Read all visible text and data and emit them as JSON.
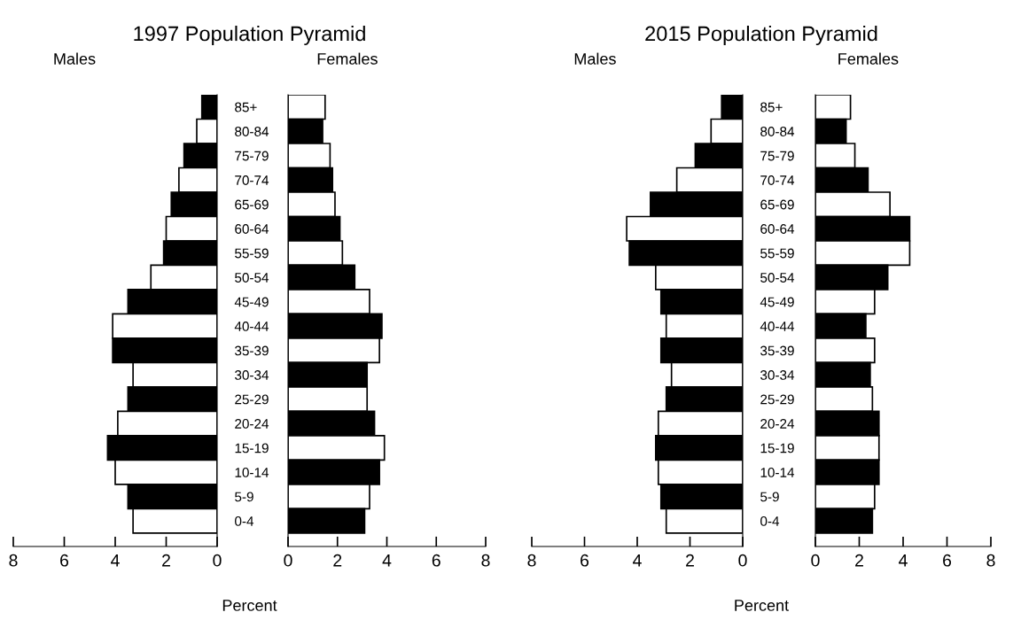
{
  "chart_data": [
    {
      "type": "bar",
      "orientation": "horizontal",
      "title": "1997 Population Pyramid",
      "subtitle": "Males",
      "xlabel": "Percent",
      "categories": [
        "85+",
        "80-84",
        "75-79",
        "70-74",
        "65-69",
        "60-64",
        "55-59",
        "50-54",
        "45-49",
        "40-44",
        "35-39",
        "30-34",
        "25-29",
        "20-24",
        "15-19",
        "10-14",
        "5-9",
        "0-4"
      ],
      "values": [
        0.6,
        0.8,
        1.3,
        1.5,
        1.8,
        2.0,
        2.1,
        2.6,
        3.5,
        4.1,
        4.1,
        3.3,
        3.5,
        3.9,
        4.3,
        4.0,
        3.5,
        3.3
      ],
      "colors": [
        "#000000",
        "#ffffff",
        "#000000",
        "#ffffff",
        "#000000",
        "#ffffff",
        "#000000",
        "#ffffff",
        "#000000",
        "#ffffff",
        "#000000",
        "#ffffff",
        "#000000",
        "#ffffff",
        "#000000",
        "#ffffff",
        "#000000",
        "#ffffff"
      ],
      "xlim": [
        8,
        0
      ],
      "xticks": [
        8,
        6,
        4,
        2,
        0
      ]
    },
    {
      "type": "bar",
      "orientation": "horizontal",
      "subtitle": "Females",
      "categories": [
        null,
        null,
        null,
        null,
        null,
        null,
        null,
        null,
        null,
        null,
        null,
        null,
        null,
        null,
        null,
        null,
        null,
        null
      ],
      "values": [
        1.5,
        1.4,
        1.7,
        1.8,
        1.9,
        2.1,
        2.2,
        2.7,
        3.3,
        3.8,
        3.7,
        3.2,
        3.2,
        3.5,
        3.9,
        3.7,
        3.3,
        3.1
      ],
      "colors": [
        "#ffffff",
        "#000000",
        "#ffffff",
        "#000000",
        "#ffffff",
        "#000000",
        "#ffffff",
        "#000000",
        "#ffffff",
        "#000000",
        "#ffffff",
        "#000000",
        "#ffffff",
        "#000000",
        "#ffffff",
        "#000000",
        "#ffffff",
        "#000000"
      ],
      "xlim": [
        0,
        8
      ],
      "xticks": [
        0,
        2,
        4,
        6,
        8
      ]
    },
    {
      "type": "bar",
      "orientation": "horizontal",
      "title": "2015 Population Pyramid",
      "subtitle": "Males",
      "xlabel": "Percent",
      "categories": [
        "85+",
        "80-84",
        "75-79",
        "70-74",
        "65-69",
        "60-64",
        "55-59",
        "50-54",
        "45-49",
        "40-44",
        "35-39",
        "30-34",
        "25-29",
        "20-24",
        "15-19",
        "10-14",
        "5-9",
        "0-4"
      ],
      "values": [
        0.8,
        1.2,
        1.8,
        2.5,
        3.5,
        4.4,
        4.3,
        3.3,
        3.1,
        2.9,
        3.1,
        2.7,
        2.9,
        3.2,
        3.3,
        3.2,
        3.1,
        2.9
      ],
      "colors": [
        "#000000",
        "#ffffff",
        "#000000",
        "#ffffff",
        "#000000",
        "#ffffff",
        "#000000",
        "#ffffff",
        "#000000",
        "#ffffff",
        "#000000",
        "#ffffff",
        "#000000",
        "#ffffff",
        "#000000",
        "#ffffff",
        "#000000",
        "#ffffff"
      ],
      "xlim": [
        8,
        0
      ],
      "xticks": [
        8,
        6,
        4,
        2,
        0
      ]
    },
    {
      "type": "bar",
      "orientation": "horizontal",
      "subtitle": "Females",
      "categories": [
        null,
        null,
        null,
        null,
        null,
        null,
        null,
        null,
        null,
        null,
        null,
        null,
        null,
        null,
        null,
        null,
        null,
        null
      ],
      "values": [
        1.6,
        1.4,
        1.8,
        2.4,
        3.4,
        4.3,
        4.3,
        3.3,
        2.7,
        2.3,
        2.7,
        2.5,
        2.6,
        2.9,
        2.9,
        2.9,
        2.7,
        2.6
      ],
      "colors": [
        "#ffffff",
        "#000000",
        "#ffffff",
        "#000000",
        "#ffffff",
        "#000000",
        "#ffffff",
        "#000000",
        "#ffffff",
        "#000000",
        "#ffffff",
        "#000000",
        "#ffffff",
        "#000000",
        "#ffffff",
        "#000000",
        "#ffffff",
        "#000000"
      ],
      "xlim": [
        0,
        8
      ],
      "xticks": [
        0,
        2,
        4,
        6,
        8
      ]
    }
  ]
}
